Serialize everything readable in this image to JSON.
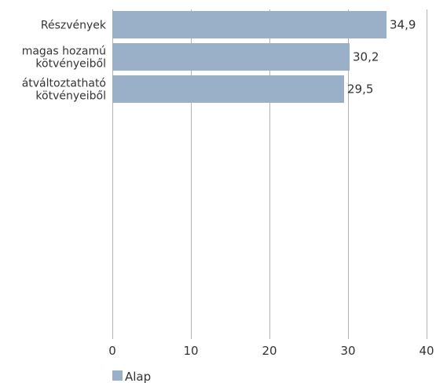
{
  "chart_data": {
    "type": "bar",
    "orientation": "horizontal",
    "categories": [
      "Részvények",
      "magas hozamú kötvényeiből",
      "átváltoztatható kötvényeiből"
    ],
    "category_label_lines": [
      [
        "Részvények"
      ],
      [
        "magas hozamú",
        "kötvényeiből"
      ],
      [
        "átváltoztatható",
        "kötvényeiből"
      ]
    ],
    "series": [
      {
        "name": "Alap",
        "values": [
          34.9,
          30.2,
          29.5
        ],
        "labels": [
          "34,9",
          "30,2",
          "29,5"
        ],
        "color": "#9aafc8"
      }
    ],
    "xlim": [
      0,
      40
    ],
    "xticks": [
      0,
      10,
      20,
      30,
      40
    ],
    "grid": true,
    "legend_position": "bottom-left",
    "gridline_color": "#b3b3b3",
    "text_color": "#333333"
  }
}
